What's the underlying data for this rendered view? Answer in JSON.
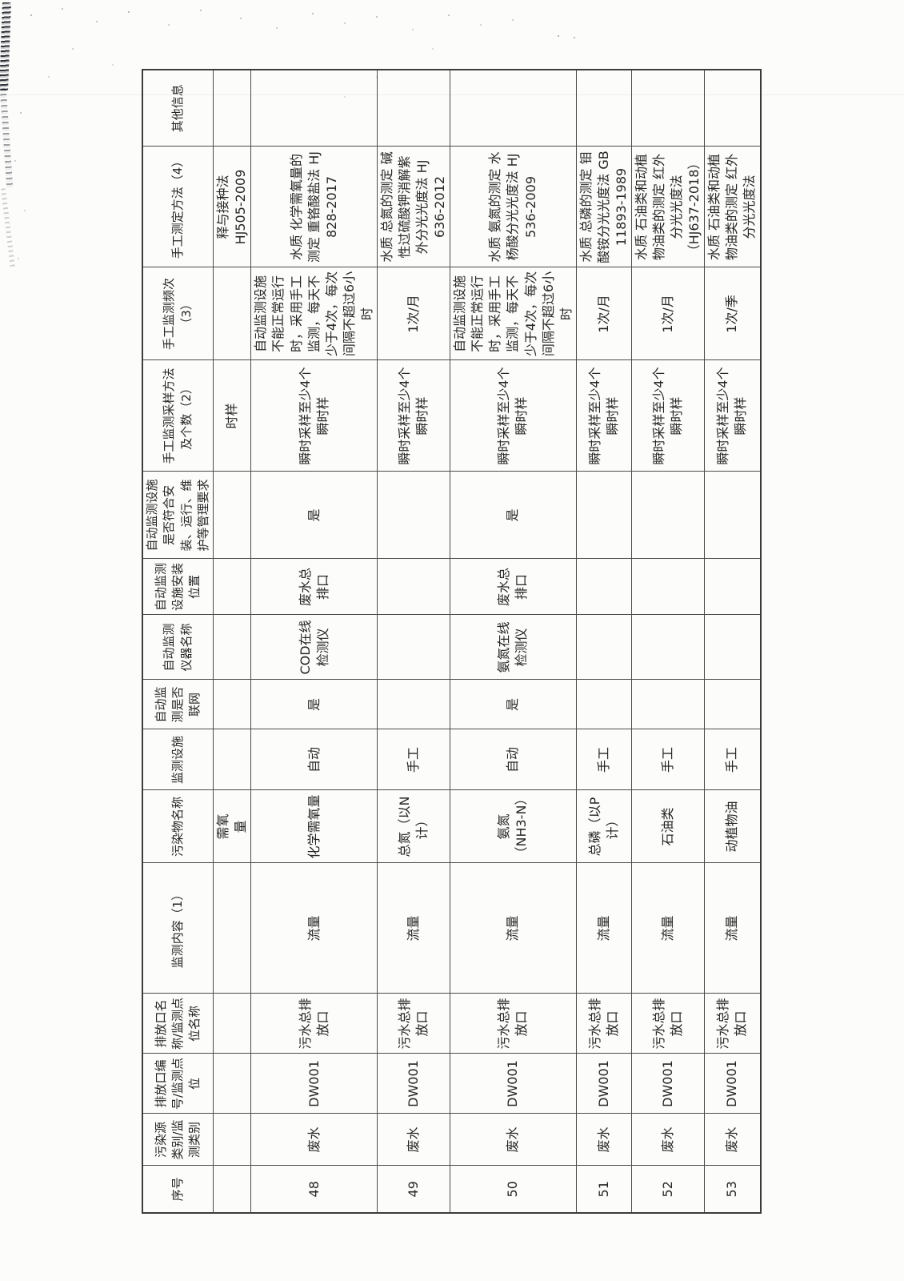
{
  "document": {
    "kind": "scanned self-monitoring record table (rotated 90°)",
    "language": "zh-CN"
  },
  "colors": {
    "page_background": "#fcfcfb",
    "grid_line": "#4c4c4c",
    "text": "#262626"
  },
  "table": {
    "headers": [
      "序号",
      "污染源类别/监测类别",
      "排放口编号/监测点位",
      "排放口名称/监测点位名称",
      "监测内容（1）",
      "污染物名称",
      "监测设施",
      "自动监测是否联网",
      "自动监测仪器名称",
      "自动监测设施安装位置",
      "自动监测设施是否符合安装、运行、维护等管理要求",
      "手工监测采样方法及个数（2）",
      "手工监测频次（3）",
      "手工测定方法（4）",
      "其他信息"
    ],
    "rows": [
      {
        "id": "row-47-continuation",
        "cells": [
          "",
          "",
          "",
          "",
          "",
          "需氧\n量",
          "",
          "",
          "",
          "",
          "",
          "时样",
          "",
          "释与接种法\nHJ505-2009",
          ""
        ]
      },
      {
        "id": "row-48",
        "cells": [
          "48",
          "废水",
          "DW001",
          "污水总排放口",
          "流量",
          "化学需氧量",
          "自动",
          "是",
          "COD在线检测仪",
          "废水总排口",
          "是",
          "瞬时采样至少4个瞬时样",
          "自动监测设施不能正常运行时，采用手工监测，每天不少于4次，每次间隔不超过6小时",
          "水质 化学需氧量的测定 重铬酸盐法 HJ 828-2017",
          ""
        ]
      },
      {
        "id": "row-49",
        "cells": [
          "49",
          "废水",
          "DW001",
          "污水总排放口",
          "流量",
          "总氮（以N计）",
          "手工",
          "",
          "",
          "",
          "",
          "瞬时采样至少4个瞬时样",
          "1次/月",
          "水质 总氮的测定 碱性过硫酸钾消解紫外分光光度法 HJ 636-2012",
          ""
        ]
      },
      {
        "id": "row-50",
        "cells": [
          "50",
          "废水",
          "DW001",
          "污水总排放口",
          "流量",
          "氨氮（NH3-N）",
          "自动",
          "是",
          "氨氮在线检测仪",
          "废水总排口",
          "是",
          "瞬时采样至少4个瞬时样",
          "自动监测设施不能正常运行时，采用手工监测，每天不少于4次，每次间隔不超过6小时",
          "水质 氨氮的测定 水杨酸分光光度法 HJ 536-2009",
          ""
        ]
      },
      {
        "id": "row-51",
        "cells": [
          "51",
          "废水",
          "DW001",
          "污水总排放口",
          "流量",
          "总磷（以P计）",
          "手工",
          "",
          "",
          "",
          "",
          "瞬时采样至少4个瞬时样",
          "1次/月",
          "水质 总磷的测定 钼酸铵分光光度法 GB 11893-1989",
          ""
        ]
      },
      {
        "id": "row-52",
        "cells": [
          "52",
          "废水",
          "DW001",
          "污水总排放口",
          "流量",
          "石油类",
          "手工",
          "",
          "",
          "",
          "",
          "瞬时采样至少4个瞬时样",
          "1次/月",
          "水质 石油类和动植物油类的测定 红外分光光度法（HJ637-2018）",
          ""
        ]
      },
      {
        "id": "row-53",
        "cells": [
          "53",
          "废水",
          "DW001",
          "污水总排放口",
          "流量",
          "动植物油",
          "手工",
          "",
          "",
          "",
          "",
          "瞬时采样至少4个瞬时样",
          "1次/季",
          "水质 石油类和动植物油类的测定 红外分光光度法",
          ""
        ]
      }
    ]
  }
}
